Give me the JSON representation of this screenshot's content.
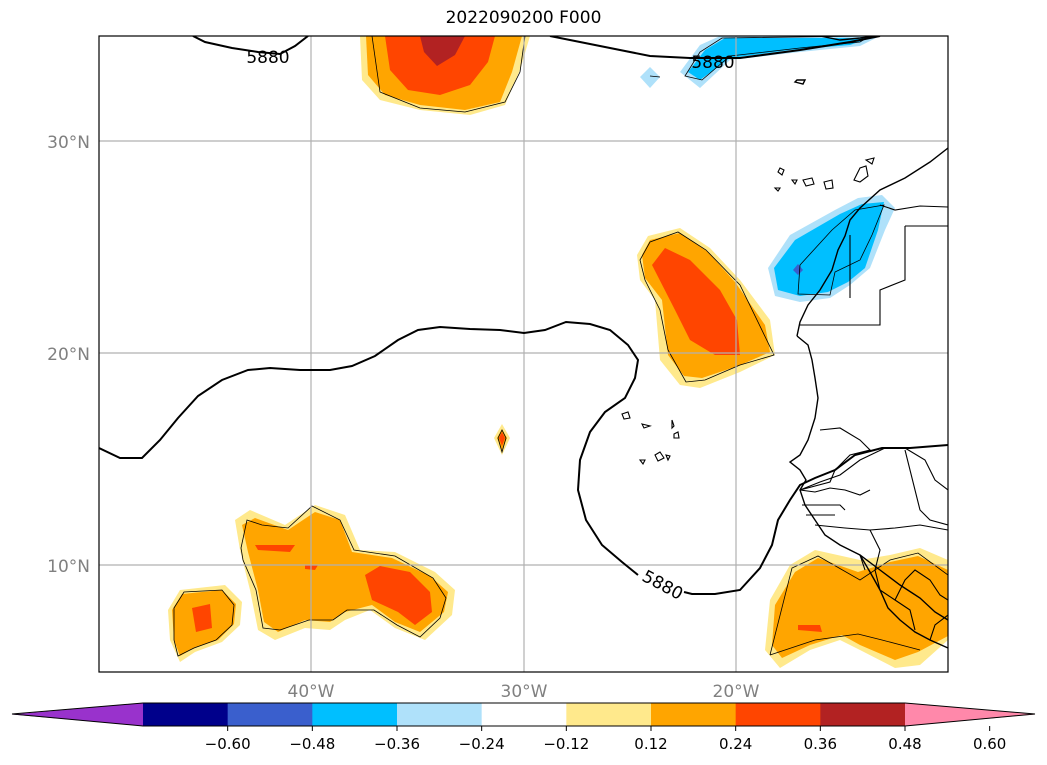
{
  "title": "2022090200 F000",
  "contour_value_label": "5880",
  "lat_labels": [
    "30°N",
    "20°N",
    "10°N"
  ],
  "lon_labels": [
    "40°W",
    "30°W",
    "20°W"
  ],
  "axis_label_color": "#808080",
  "colorbar": {
    "ticks": [
      "−0.60",
      "−0.48",
      "−0.36",
      "−0.24",
      "−0.12",
      "0.12",
      "0.24",
      "0.36",
      "0.48",
      "0.60"
    ],
    "colors": [
      "#9932cc",
      "#00008b",
      "#3a5fcd",
      "#00bfff",
      "#afe1fa",
      "#ffffff",
      "#ffe98c",
      "#ffa500",
      "#ff4500",
      "#b22222",
      "#ff88aa"
    ],
    "extend": "both"
  }
}
